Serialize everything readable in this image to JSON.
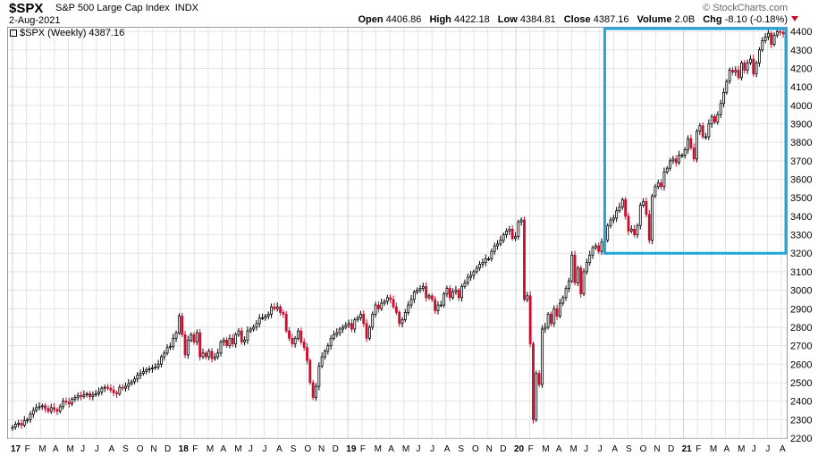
{
  "header": {
    "ticker": "$SPX",
    "index_name": "S&P 500 Large Cap Index",
    "exchange": "INDX",
    "date": "2-Aug-2021",
    "brand": "© StockCharts.com",
    "open_label": "Open",
    "open_value": "4406.86",
    "high_label": "High",
    "high_value": "4422.18",
    "low_label": "Low",
    "low_value": "4384.81",
    "close_label": "Close",
    "close_value": "4387.16",
    "volume_label": "Volume",
    "volume_value": "2.0B",
    "chg_label": "Chg",
    "chg_value": "-8.10 (-0.18%)"
  },
  "legend": {
    "label": "$SPX (Weekly) 4387.16"
  },
  "colors": {
    "up": "#000000",
    "down": "#c8102e",
    "highlight": "#1ea5dc",
    "grid": "#e3e3e3"
  },
  "chart_data": {
    "type": "candlestick",
    "title": "$SPX (Weekly)",
    "ylim": [
      2200,
      4420
    ],
    "y_ticks": [
      2200,
      2300,
      2400,
      2500,
      2600,
      2700,
      2800,
      2900,
      3000,
      3100,
      3200,
      3300,
      3400,
      3500,
      3600,
      3700,
      3800,
      3900,
      4000,
      4100,
      4200,
      4300,
      4400
    ],
    "x_ticks": [
      "17",
      "F",
      "M",
      "A",
      "M",
      "J",
      "J",
      "A",
      "S",
      "O",
      "N",
      "D",
      "18",
      "F",
      "M",
      "A",
      "M",
      "J",
      "J",
      "A",
      "S",
      "O",
      "N",
      "D",
      "19",
      "F",
      "M",
      "A",
      "M",
      "J",
      "J",
      "A",
      "S",
      "O",
      "N",
      "D",
      "20",
      "F",
      "M",
      "A",
      "M",
      "J",
      "J",
      "A",
      "S",
      "O",
      "N",
      "D",
      "21",
      "F",
      "M",
      "A",
      "M",
      "J",
      "J",
      "A"
    ],
    "x_ticks_bold": [
      "17",
      "18",
      "19",
      "20",
      "21"
    ],
    "grid": true,
    "x_start": "2017-01",
    "x_end": "2021-08",
    "highlight": {
      "x_from": "2020-08",
      "x_to": "2021-08",
      "y_from": 3200,
      "y_to": 4420
    },
    "series": [
      {
        "values": [
          2260,
          2275,
          2280,
          2270,
          2295,
          2300,
          2330,
          2350,
          2365,
          2370,
          2375,
          2360,
          2345,
          2365,
          2355,
          2345,
          2370,
          2400,
          2395,
          2385,
          2410,
          2420,
          2430,
          2425,
          2435,
          2440,
          2425,
          2435,
          2440,
          2450,
          2470,
          2475,
          2470,
          2460,
          2445,
          2440,
          2475,
          2470,
          2480,
          2495,
          2505,
          2520,
          2540,
          2550,
          2560,
          2570,
          2575,
          2580,
          2585,
          2600,
          2640,
          2660,
          2690,
          2695,
          2740,
          2770,
          2860,
          2760,
          2650,
          2730,
          2760,
          2720,
          2770,
          2640,
          2660,
          2640,
          2670,
          2630,
          2640,
          2660,
          2720,
          2730,
          2700,
          2740,
          2710,
          2760,
          2780,
          2720,
          2730,
          2780,
          2790,
          2800,
          2820,
          2850,
          2850,
          2860,
          2870,
          2910,
          2900,
          2910,
          2880,
          2870,
          2780,
          2740,
          2710,
          2740,
          2780,
          2720,
          2690,
          2620,
          2500,
          2420,
          2480,
          2590,
          2640,
          2670,
          2700,
          2740,
          2760,
          2770,
          2790,
          2800,
          2810,
          2820,
          2790,
          2840,
          2850,
          2870,
          2820,
          2740,
          2800,
          2870,
          2920,
          2900,
          2930,
          2940,
          2960,
          2950,
          2910,
          2880,
          2820,
          2840,
          2880,
          2920,
          2950,
          2990,
          3000,
          3010,
          3020,
          2960,
          2970,
          2950,
          2890,
          2920,
          2920,
          2980,
          3010,
          2960,
          2990,
          3000,
          2960,
          3020,
          3040,
          3070,
          3080,
          3100,
          3120,
          3140,
          3150,
          3170,
          3170,
          3210,
          3240,
          3250,
          3270,
          3300,
          3320,
          3330,
          3280,
          3290,
          3370,
          3380,
          2950,
          2970,
          2710,
          2300,
          2550,
          2490,
          2790,
          2800,
          2870,
          2820,
          2900,
          2860,
          2930,
          2960,
          3010,
          3050,
          3190,
          3040,
          3120,
          2980,
          3100,
          3150,
          3190,
          3230,
          3240,
          3210,
          3260,
          3270,
          3350,
          3380,
          3390,
          3430,
          3450,
          3490,
          3400,
          3320,
          3330,
          3300,
          3350,
          3460,
          3480,
          3410,
          3270,
          3510,
          3560,
          3580,
          3560,
          3640,
          3660,
          3700,
          3710,
          3690,
          3730,
          3730,
          3760,
          3820,
          3770,
          3710,
          3860,
          3890,
          3830,
          3830,
          3900,
          3940,
          3910,
          3950,
          4010,
          4070,
          4130,
          4190,
          4180,
          4190,
          4150,
          4230,
          4190,
          4230,
          4250,
          4170,
          4230,
          4300,
          4350,
          4370,
          4390,
          4330,
          4380,
          4400,
          4395,
          4387
        ]
      }
    ]
  }
}
